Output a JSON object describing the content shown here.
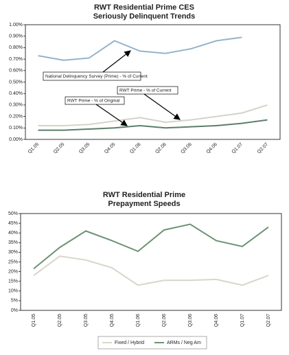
{
  "chart_data": [
    {
      "type": "line",
      "title": "RWT Residential Prime CES",
      "subtitle": "Seriously Delinquent Trends",
      "categories": [
        "Q1.05",
        "Q2.05",
        "Q3.05",
        "Q4.05",
        "Q1.06",
        "Q2.06",
        "Q3.06",
        "Q4.06",
        "Q1.07",
        "Q2.07"
      ],
      "series": [
        {
          "name": "National Delinquency Survey (Prime) - % of Current",
          "color": "#93b3cb",
          "values": [
            0.73,
            0.69,
            0.71,
            0.86,
            0.77,
            0.75,
            0.79,
            0.86,
            0.89,
            null
          ]
        },
        {
          "name": "RWT Prime - % of Current",
          "color": "#d3d3c6",
          "values": [
            0.12,
            0.12,
            0.13,
            0.16,
            0.19,
            0.15,
            0.17,
            0.2,
            0.23,
            0.3
          ]
        },
        {
          "name": "RWT Prime - % of Original",
          "color": "#5b7d6a",
          "values": [
            0.08,
            0.08,
            0.09,
            0.1,
            0.12,
            0.1,
            0.11,
            0.12,
            0.14,
            0.17
          ]
        }
      ],
      "ylim": [
        0,
        1
      ],
      "yticks": [
        {
          "value": 0,
          "label": "0.00%"
        },
        {
          "value": 0.1,
          "label": "0.10%"
        },
        {
          "value": 0.2,
          "label": "0.20%"
        },
        {
          "value": 0.3,
          "label": "0.30%"
        },
        {
          "value": 0.4,
          "label": "0.40%"
        },
        {
          "value": 0.5,
          "label": "0.50%"
        },
        {
          "value": 0.6,
          "label": "0.60%"
        },
        {
          "value": 0.7,
          "label": "0.70%"
        },
        {
          "value": 0.8,
          "label": "0.80%"
        },
        {
          "value": 0.9,
          "label": "0.90%"
        },
        {
          "value": 1,
          "label": "1.00%"
        }
      ],
      "grid": false,
      "legend": "none"
    },
    {
      "type": "line",
      "title": "RWT Residential Prime",
      "subtitle": "Prepayment Speeds",
      "categories": [
        "Q1.05",
        "Q2.05",
        "Q3.05",
        "Q4.05",
        "Q1.06",
        "Q2.06",
        "Q3.06",
        "Q4.06",
        "Q1.07",
        "Q2.07"
      ],
      "series": [
        {
          "name": "Fixed / Hybrid",
          "color": "#d6d6ca",
          "values": [
            18,
            28,
            26,
            22,
            13,
            15.5,
            15.5,
            16,
            13,
            18
          ]
        },
        {
          "name": "ARMs / Neg Am",
          "color": "#6a9272",
          "values": [
            21.5,
            32.5,
            41,
            36,
            30.5,
            41.5,
            44.5,
            36,
            33,
            43
          ]
        }
      ],
      "ylim": [
        0,
        50
      ],
      "yticks": [
        {
          "value": 0,
          "label": "0%"
        },
        {
          "value": 5,
          "label": "5%"
        },
        {
          "value": 10,
          "label": "10%"
        },
        {
          "value": 15,
          "label": "15%"
        },
        {
          "value": 20,
          "label": "20%"
        },
        {
          "value": 25,
          "label": "25%"
        },
        {
          "value": 30,
          "label": "30%"
        },
        {
          "value": 35,
          "label": "35%"
        },
        {
          "value": 40,
          "label": "40%"
        },
        {
          "value": 45,
          "label": "45%"
        },
        {
          "value": 50,
          "label": "50%"
        }
      ],
      "grid": false,
      "legend": "bottom"
    }
  ]
}
